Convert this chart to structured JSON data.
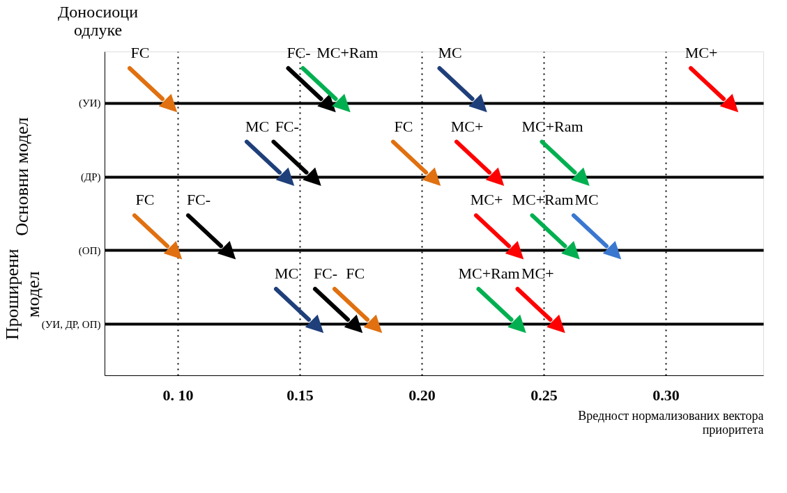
{
  "chart_data": {
    "type": "scatter",
    "orientation": "horizontal",
    "ylabel": "Доносиоци одлуке",
    "xlabel": "Вредност нормализованих вектора приоритета",
    "categories": [
      "(УИ)",
      "(ДР)",
      "(ОП)",
      "(УИ, ДР, ОП)"
    ],
    "xlim": [
      0.07,
      0.34
    ],
    "xticks": [
      {
        "value": 0.1,
        "label": "0. 10"
      },
      {
        "value": 0.15,
        "label": "0.15"
      },
      {
        "value": 0.2,
        "label": "0.20"
      },
      {
        "value": 0.25,
        "label": "0.25"
      },
      {
        "value": 0.3,
        "label": "0.30"
      }
    ],
    "grid": true,
    "annotations": [
      "Основни модел",
      "Проширени модел"
    ],
    "series": [
      {
        "name": "FC",
        "color": "#e07010",
        "values": [
          0.096,
          0.204,
          0.098,
          0.18
        ]
      },
      {
        "name": "FC-",
        "color": "#000000",
        "values": [
          0.161,
          0.155,
          0.12,
          0.172
        ]
      },
      {
        "name": "MC",
        "color": "#1f3f7a",
        "colors": [
          null,
          null,
          "#3a78d0",
          null
        ],
        "values": [
          0.223,
          0.144,
          0.278,
          0.156
        ]
      },
      {
        "name": "MC+",
        "color": "#ff0000",
        "values": [
          0.326,
          0.23,
          0.238,
          0.255
        ]
      },
      {
        "name": "MC+Ram",
        "color": "#00b050",
        "values": [
          0.167,
          0.265,
          0.261,
          0.239
        ]
      }
    ]
  }
}
